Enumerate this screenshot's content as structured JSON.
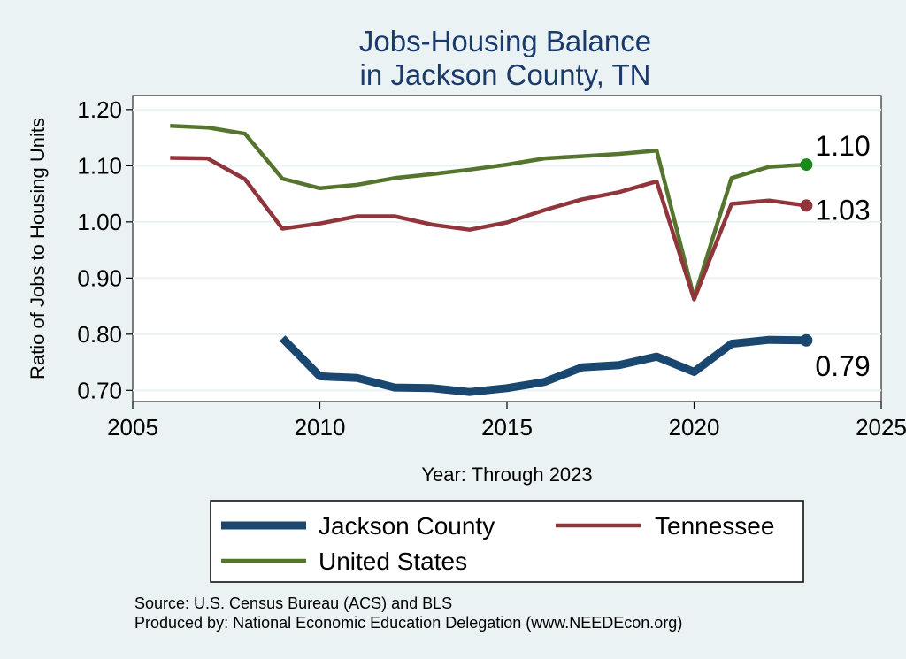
{
  "chart_data": {
    "type": "line",
    "title": [
      "Jobs-Housing Balance",
      "in Jackson County, TN"
    ],
    "xlabel": "Year: Through 2023",
    "ylabel": "Ratio of Jobs to Housing Units",
    "xlim": [
      2005,
      2025
    ],
    "ylim": [
      0.68,
      1.225
    ],
    "xticks": [
      2005,
      2010,
      2015,
      2020,
      2025
    ],
    "yticks": [
      0.7,
      0.8,
      0.9,
      1.0,
      1.1,
      1.2
    ],
    "ytick_labels": [
      "0.70",
      "0.80",
      "0.90",
      "1.00",
      "1.10",
      "1.20"
    ],
    "grid": "horizontal",
    "legend_position": "bottom",
    "series": [
      {
        "name": "Jackson County",
        "color": "#1a476f",
        "x": [
          2009,
          2010,
          2011,
          2012,
          2013,
          2014,
          2015,
          2016,
          2017,
          2018,
          2019,
          2020,
          2021,
          2022,
          2023
        ],
        "y": [
          0.793,
          0.725,
          0.722,
          0.705,
          0.704,
          0.697,
          0.704,
          0.715,
          0.741,
          0.745,
          0.76,
          0.733,
          0.783,
          0.79,
          0.789
        ],
        "end_label": "0.79"
      },
      {
        "name": "Tennessee",
        "color": "#90353b",
        "x": [
          2006,
          2007,
          2008,
          2009,
          2010,
          2011,
          2012,
          2013,
          2014,
          2015,
          2016,
          2017,
          2018,
          2019,
          2020,
          2021,
          2022,
          2023
        ],
        "y": [
          1.114,
          1.113,
          1.076,
          0.988,
          0.997,
          1.01,
          1.01,
          0.995,
          0.986,
          0.999,
          1.021,
          1.04,
          1.053,
          1.072,
          0.862,
          1.032,
          1.038,
          1.029
        ],
        "end_label": "1.03"
      },
      {
        "name": "United States",
        "color": "#55752f",
        "x": [
          2006,
          2007,
          2008,
          2009,
          2010,
          2011,
          2012,
          2013,
          2014,
          2015,
          2016,
          2017,
          2018,
          2019,
          2020,
          2021,
          2022,
          2023
        ],
        "y": [
          1.171,
          1.168,
          1.157,
          1.077,
          1.06,
          1.066,
          1.078,
          1.085,
          1.093,
          1.102,
          1.113,
          1.117,
          1.121,
          1.127,
          0.865,
          1.078,
          1.098,
          1.102
        ],
        "end_label": "1.10"
      }
    ],
    "end_markers": [
      {
        "series": "Jackson County",
        "color": "#1a476f"
      },
      {
        "series": "Tennessee",
        "color": "#90353b"
      },
      {
        "series": "United States",
        "color": "#1a8a1a"
      }
    ]
  },
  "source": {
    "line1": "Source: U.S. Census Bureau (ACS) and BLS",
    "line2": "Produced by: National Economic Education Delegation (www.NEEDEcon.org)"
  }
}
